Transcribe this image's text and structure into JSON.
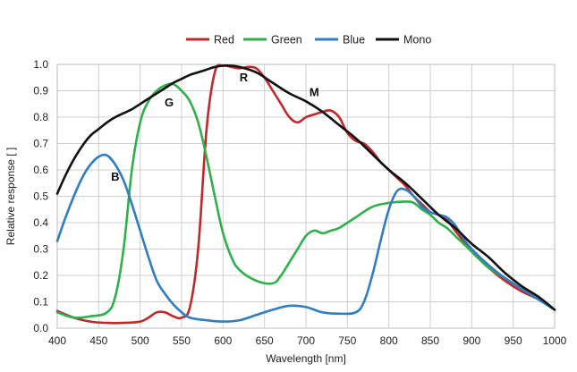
{
  "chart_data": {
    "type": "line",
    "xlabel": "Wavelength [nm]",
    "ylabel": "Relative response [ ]",
    "xlim": [
      400,
      1000
    ],
    "ylim": [
      0,
      1.0
    ],
    "xticks": [
      "400",
      "450",
      "500",
      "550",
      "600",
      "650",
      "700",
      "750",
      "800",
      "850",
      "900",
      "950",
      "1000"
    ],
    "yticks": [
      "0.0",
      "0.1",
      "0.2",
      "0.3",
      "0.4",
      "0.5",
      "0.6",
      "0.7",
      "0.8",
      "0.9",
      "1.0"
    ],
    "grid": true,
    "legend_position": "top-center",
    "series": [
      {
        "name": "Red",
        "color": "#c0282d",
        "x": [
          400,
          420,
          440,
          460,
          480,
          500,
          510,
          520,
          530,
          540,
          550,
          560,
          570,
          580,
          590,
          600,
          610,
          620,
          630,
          640,
          650,
          660,
          670,
          680,
          690,
          700,
          710,
          720,
          730,
          740,
          750,
          760,
          770,
          780,
          790,
          800,
          810,
          820,
          830,
          840,
          850,
          860,
          870,
          880,
          890,
          900,
          920,
          940,
          960,
          980,
          1000
        ],
        "y": [
          0.065,
          0.04,
          0.025,
          0.02,
          0.02,
          0.025,
          0.04,
          0.06,
          0.06,
          0.045,
          0.04,
          0.08,
          0.3,
          0.75,
          0.97,
          0.995,
          0.99,
          0.985,
          0.99,
          0.985,
          0.95,
          0.9,
          0.85,
          0.8,
          0.78,
          0.8,
          0.81,
          0.82,
          0.825,
          0.8,
          0.74,
          0.71,
          0.7,
          0.67,
          0.63,
          0.6,
          0.57,
          0.54,
          0.5,
          0.47,
          0.44,
          0.43,
          0.41,
          0.37,
          0.33,
          0.29,
          0.23,
          0.18,
          0.14,
          0.11,
          0.07
        ]
      },
      {
        "name": "Green",
        "color": "#2eb04b",
        "x": [
          400,
          420,
          440,
          460,
          470,
          480,
          490,
          500,
          510,
          520,
          530,
          540,
          550,
          560,
          570,
          580,
          590,
          600,
          610,
          620,
          640,
          660,
          670,
          680,
          690,
          700,
          710,
          720,
          730,
          740,
          760,
          780,
          800,
          820,
          830,
          840,
          850,
          860,
          870,
          880,
          890,
          900,
          920,
          940,
          960,
          980,
          1000
        ],
        "y": [
          0.06,
          0.04,
          0.045,
          0.06,
          0.12,
          0.3,
          0.6,
          0.78,
          0.86,
          0.9,
          0.92,
          0.925,
          0.9,
          0.86,
          0.78,
          0.65,
          0.5,
          0.36,
          0.27,
          0.22,
          0.18,
          0.17,
          0.2,
          0.25,
          0.3,
          0.35,
          0.37,
          0.36,
          0.37,
          0.38,
          0.42,
          0.46,
          0.475,
          0.48,
          0.475,
          0.45,
          0.43,
          0.4,
          0.38,
          0.35,
          0.32,
          0.29,
          0.23,
          0.19,
          0.15,
          0.11,
          0.07
        ]
      },
      {
        "name": "Blue",
        "color": "#2f7dc2",
        "x": [
          400,
          410,
          420,
          430,
          440,
          450,
          460,
          470,
          480,
          490,
          500,
          510,
          520,
          530,
          540,
          550,
          560,
          580,
          600,
          620,
          640,
          660,
          680,
          700,
          720,
          740,
          760,
          770,
          780,
          790,
          800,
          810,
          820,
          830,
          840,
          850,
          860,
          870,
          880,
          890,
          900,
          920,
          940,
          960,
          980,
          1000
        ],
        "y": [
          0.33,
          0.42,
          0.5,
          0.57,
          0.62,
          0.65,
          0.655,
          0.62,
          0.56,
          0.47,
          0.37,
          0.27,
          0.18,
          0.13,
          0.09,
          0.06,
          0.04,
          0.03,
          0.025,
          0.03,
          0.05,
          0.07,
          0.085,
          0.08,
          0.06,
          0.055,
          0.06,
          0.1,
          0.2,
          0.33,
          0.45,
          0.52,
          0.525,
          0.5,
          0.46,
          0.44,
          0.43,
          0.42,
          0.39,
          0.34,
          0.3,
          0.24,
          0.19,
          0.15,
          0.11,
          0.07
        ]
      },
      {
        "name": "Mono",
        "color": "#111111",
        "x": [
          400,
          410,
          420,
          430,
          440,
          450,
          460,
          470,
          480,
          490,
          500,
          510,
          520,
          530,
          540,
          550,
          560,
          570,
          580,
          590,
          600,
          610,
          620,
          640,
          660,
          680,
          700,
          720,
          740,
          760,
          780,
          800,
          820,
          840,
          860,
          880,
          900,
          920,
          940,
          960,
          980,
          1000
        ],
        "y": [
          0.51,
          0.58,
          0.64,
          0.69,
          0.73,
          0.755,
          0.78,
          0.8,
          0.815,
          0.83,
          0.85,
          0.87,
          0.89,
          0.91,
          0.93,
          0.945,
          0.96,
          0.97,
          0.98,
          0.99,
          0.995,
          0.995,
          0.99,
          0.97,
          0.93,
          0.89,
          0.86,
          0.82,
          0.77,
          0.72,
          0.66,
          0.6,
          0.55,
          0.49,
          0.43,
          0.38,
          0.32,
          0.27,
          0.21,
          0.16,
          0.12,
          0.07
        ]
      }
    ],
    "annotations": [
      {
        "text": "R",
        "x": 625,
        "y": 0.935
      },
      {
        "text": "M",
        "x": 710,
        "y": 0.88
      },
      {
        "text": "G",
        "x": 535,
        "y": 0.84
      },
      {
        "text": "B",
        "x": 470,
        "y": 0.56
      }
    ]
  }
}
